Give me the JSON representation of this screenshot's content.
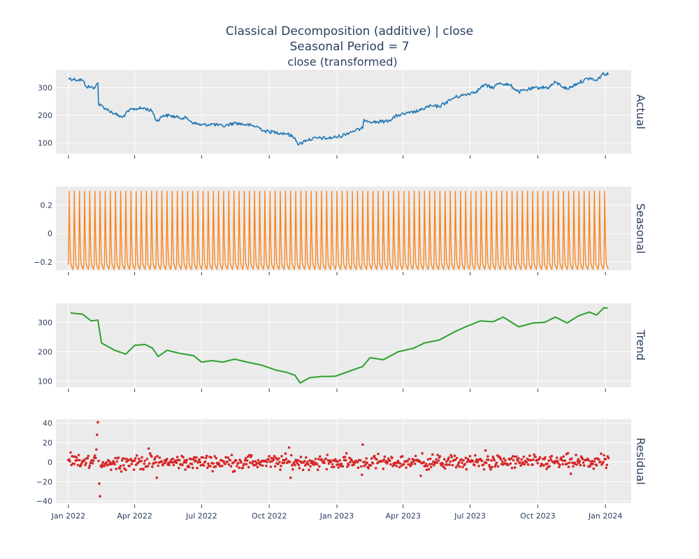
{
  "chart_data": {
    "type": "line",
    "title": "Classical Decomposition (additive) | close",
    "subtitle": "Seasonal Period = 7",
    "subplot_title": "close (transformed)",
    "grid": true,
    "x_range": [
      "2021-12-15",
      "2024-02-05"
    ],
    "x_ticks": [
      {
        "date": "2022-01-01",
        "label": "Jan 2022"
      },
      {
        "date": "2022-04-01",
        "label": "Apr 2022"
      },
      {
        "date": "2022-07-01",
        "label": "Jul 2022"
      },
      {
        "date": "2022-10-01",
        "label": "Oct 2022"
      },
      {
        "date": "2023-01-01",
        "label": "Jan 2023"
      },
      {
        "date": "2023-04-01",
        "label": "Apr 2023"
      },
      {
        "date": "2023-07-01",
        "label": "Jul 2023"
      },
      {
        "date": "2023-10-01",
        "label": "Oct 2023"
      },
      {
        "date": "2024-01-01",
        "label": "Jan 2024"
      }
    ],
    "panels": [
      {
        "name": "Actual",
        "mode": "line",
        "color": "#1f77b4",
        "ylim": [
          60,
          365
        ],
        "y_ticks": [
          {
            "v": 100,
            "label": "100"
          },
          {
            "v": 200,
            "label": "200"
          },
          {
            "v": 300,
            "label": "300"
          }
        ],
        "points": [
          [
            "2022-01-01",
            334
          ],
          [
            "2022-01-10",
            330
          ],
          [
            "2022-01-20",
            328
          ],
          [
            "2022-01-25",
            305
          ],
          [
            "2022-02-05",
            300
          ],
          [
            "2022-02-10",
            318
          ],
          [
            "2022-02-11",
            240
          ],
          [
            "2022-02-20",
            225
          ],
          [
            "2022-03-05",
            205
          ],
          [
            "2022-03-15",
            192
          ],
          [
            "2022-03-25",
            218
          ],
          [
            "2022-04-05",
            225
          ],
          [
            "2022-04-15",
            225
          ],
          [
            "2022-04-25",
            215
          ],
          [
            "2022-05-01",
            178
          ],
          [
            "2022-05-10",
            200
          ],
          [
            "2022-05-20",
            198
          ],
          [
            "2022-05-30",
            192
          ],
          [
            "2022-06-10",
            190
          ],
          [
            "2022-06-20",
            172
          ],
          [
            "2022-07-01",
            164
          ],
          [
            "2022-07-15",
            168
          ],
          [
            "2022-07-30",
            160
          ],
          [
            "2022-08-15",
            172
          ],
          [
            "2022-08-30",
            166
          ],
          [
            "2022-09-15",
            158
          ],
          [
            "2022-09-25",
            142
          ],
          [
            "2022-10-10",
            138
          ],
          [
            "2022-10-25",
            133
          ],
          [
            "2022-11-05",
            118
          ],
          [
            "2022-11-10",
            92
          ],
          [
            "2022-11-20",
            110
          ],
          [
            "2022-12-05",
            117
          ],
          [
            "2022-12-20",
            116
          ],
          [
            "2023-01-05",
            123
          ],
          [
            "2023-01-20",
            140
          ],
          [
            "2023-02-05",
            152
          ],
          [
            "2023-02-07",
            185
          ],
          [
            "2023-02-20",
            175
          ],
          [
            "2023-03-10",
            178
          ],
          [
            "2023-03-25",
            200
          ],
          [
            "2023-04-10",
            208
          ],
          [
            "2023-04-25",
            218
          ],
          [
            "2023-05-05",
            232
          ],
          [
            "2023-05-20",
            232
          ],
          [
            "2023-06-10",
            265
          ],
          [
            "2023-06-25",
            275
          ],
          [
            "2023-07-10",
            288
          ],
          [
            "2023-07-20",
            310
          ],
          [
            "2023-08-01",
            300
          ],
          [
            "2023-08-10",
            318
          ],
          [
            "2023-08-25",
            308
          ],
          [
            "2023-09-05",
            285
          ],
          [
            "2023-09-20",
            295
          ],
          [
            "2023-10-05",
            302
          ],
          [
            "2023-10-15",
            300
          ],
          [
            "2023-10-25",
            320
          ],
          [
            "2023-11-10",
            295
          ],
          [
            "2023-11-25",
            318
          ],
          [
            "2023-12-10",
            335
          ],
          [
            "2023-12-20",
            325
          ],
          [
            "2023-12-28",
            350
          ],
          [
            "2024-01-05",
            348
          ]
        ]
      },
      {
        "name": "Seasonal",
        "mode": "seasonal",
        "color": "#ff7f0e",
        "ylim": [
          -0.26,
          0.33
        ],
        "y_ticks": [
          {
            "v": -0.2,
            "label": "−0.2"
          },
          {
            "v": 0,
            "label": "0"
          },
          {
            "v": 0.2,
            "label": "0.2"
          }
        ],
        "period_days": 7,
        "start": "2022-01-01",
        "end": "2024-01-05",
        "pattern": [
          -0.22,
          0.3,
          -0.05,
          -0.2,
          -0.23,
          -0.24,
          -0.25
        ]
      },
      {
        "name": "Trend",
        "mode": "line",
        "color": "#2ca02c",
        "ylim": [
          80,
          365
        ],
        "y_ticks": [
          {
            "v": 100,
            "label": "100"
          },
          {
            "v": 200,
            "label": "200"
          },
          {
            "v": 300,
            "label": "300"
          }
        ],
        "points": [
          [
            "2022-01-04",
            332
          ],
          [
            "2022-01-20",
            328
          ],
          [
            "2022-02-01",
            305
          ],
          [
            "2022-02-10",
            308
          ],
          [
            "2022-02-15",
            230
          ],
          [
            "2022-03-05",
            205
          ],
          [
            "2022-03-20",
            192
          ],
          [
            "2022-04-01",
            222
          ],
          [
            "2022-04-15",
            225
          ],
          [
            "2022-04-25",
            213
          ],
          [
            "2022-05-03",
            184
          ],
          [
            "2022-05-15",
            205
          ],
          [
            "2022-06-01",
            195
          ],
          [
            "2022-06-20",
            187
          ],
          [
            "2022-07-01",
            165
          ],
          [
            "2022-07-15",
            170
          ],
          [
            "2022-07-30",
            165
          ],
          [
            "2022-08-15",
            175
          ],
          [
            "2022-08-30",
            166
          ],
          [
            "2022-09-20",
            155
          ],
          [
            "2022-10-10",
            138
          ],
          [
            "2022-10-25",
            130
          ],
          [
            "2022-11-05",
            120
          ],
          [
            "2022-11-12",
            94
          ],
          [
            "2022-11-25",
            112
          ],
          [
            "2022-12-10",
            116
          ],
          [
            "2022-12-30",
            117
          ],
          [
            "2023-01-20",
            136
          ],
          [
            "2023-02-05",
            150
          ],
          [
            "2023-02-15",
            180
          ],
          [
            "2023-03-05",
            173
          ],
          [
            "2023-03-25",
            200
          ],
          [
            "2023-04-15",
            212
          ],
          [
            "2023-04-30",
            230
          ],
          [
            "2023-05-20",
            240
          ],
          [
            "2023-06-10",
            268
          ],
          [
            "2023-06-25",
            285
          ],
          [
            "2023-07-15",
            305
          ],
          [
            "2023-08-01",
            302
          ],
          [
            "2023-08-15",
            318
          ],
          [
            "2023-09-05",
            285
          ],
          [
            "2023-09-25",
            298
          ],
          [
            "2023-10-10",
            300
          ],
          [
            "2023-10-25",
            318
          ],
          [
            "2023-11-10",
            298
          ],
          [
            "2023-11-25",
            322
          ],
          [
            "2023-12-10",
            335
          ],
          [
            "2023-12-20",
            325
          ],
          [
            "2023-12-30",
            350
          ],
          [
            "2024-01-04",
            348
          ]
        ]
      },
      {
        "name": "Residual",
        "mode": "markers",
        "color": "#d62728",
        "ylim": [
          -42,
          44
        ],
        "y_ticks": [
          {
            "v": -40,
            "label": "−40"
          },
          {
            "v": -20,
            "label": "−20"
          },
          {
            "v": 0,
            "label": "0"
          },
          {
            "v": 20,
            "label": "20"
          },
          {
            "v": 40,
            "label": "40"
          }
        ],
        "start": "2022-01-01",
        "end": "2024-01-05",
        "step_days": 1,
        "noise_amplitude": 6,
        "outliers": [
          [
            "2022-02-10",
            41
          ],
          [
            "2022-02-09",
            28
          ],
          [
            "2022-02-08",
            13
          ],
          [
            "2022-02-12",
            -22
          ],
          [
            "2022-02-13",
            -35
          ],
          [
            "2022-05-01",
            -16
          ],
          [
            "2022-04-20",
            14
          ],
          [
            "2022-10-28",
            15
          ],
          [
            "2022-10-30",
            -16
          ],
          [
            "2023-02-05",
            18
          ],
          [
            "2023-02-04",
            -13
          ],
          [
            "2023-04-25",
            -14
          ],
          [
            "2023-04-27",
            9
          ],
          [
            "2023-11-15",
            -12
          ],
          [
            "2023-07-22",
            12
          ]
        ]
      }
    ]
  }
}
